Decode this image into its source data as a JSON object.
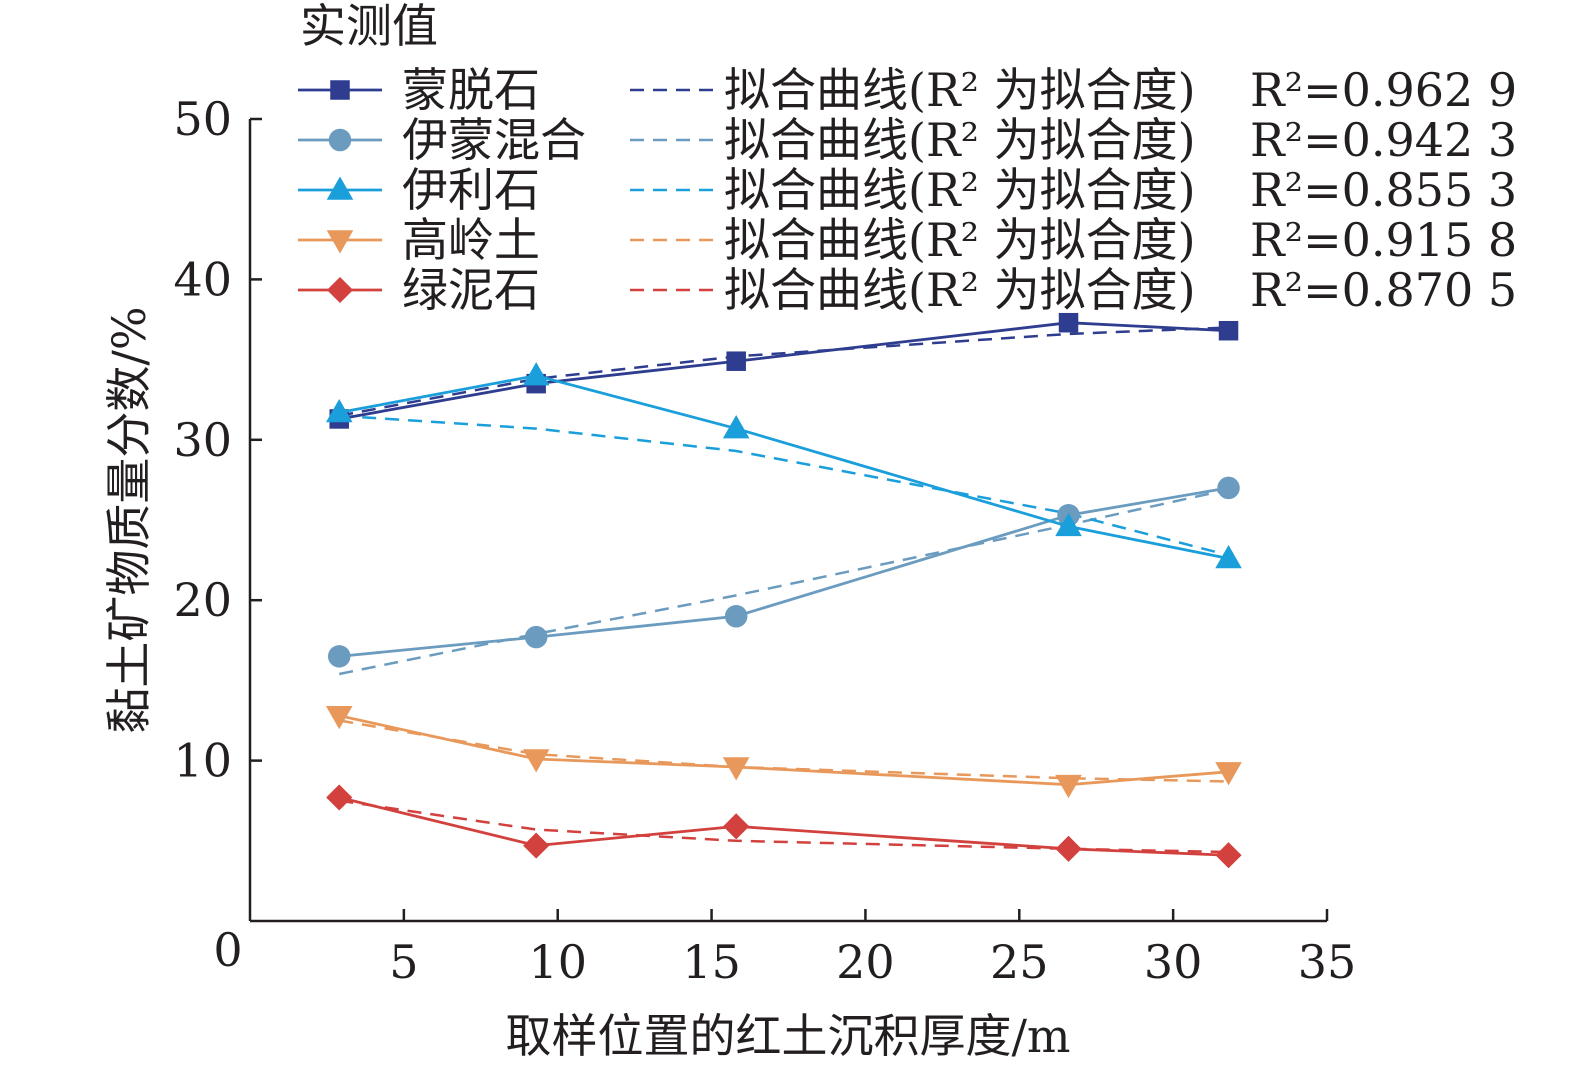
{
  "chart_data": {
    "type": "line",
    "title": "",
    "xlabel": "取样位置的红土沉积厚度/m",
    "ylabel": "黏土矿物质量分数/%",
    "xlim": [
      0,
      35
    ],
    "ylim": [
      0,
      50
    ],
    "xticks": [
      5,
      10,
      15,
      20,
      25,
      30,
      35
    ],
    "yticks": [
      10,
      20,
      30,
      40,
      50
    ],
    "origin_label": "0",
    "grid": false,
    "legend_position": "top",
    "legend_title": "实测值",
    "series": [
      {
        "name": "蒙脱石",
        "color": "#2e3d8f",
        "marker": "square",
        "x": [
          2.9,
          9.3,
          15.8,
          26.6,
          31.8
        ],
        "y": [
          31.3,
          33.5,
          34.9,
          37.3,
          36.8
        ],
        "fit_y": [
          31.5,
          33.8,
          35.2,
          36.6,
          37.0
        ],
        "fit_label": "拟合曲线(R² 为拟合度)",
        "r2_label": "R²=0.962 9"
      },
      {
        "name": "伊蒙混合",
        "color": "#6b9cbf",
        "marker": "circle",
        "x": [
          2.9,
          9.3,
          15.8,
          26.6,
          31.8
        ],
        "y": [
          16.5,
          17.7,
          19.0,
          25.3,
          27.0
        ],
        "fit_y": [
          15.4,
          17.9,
          20.3,
          24.7,
          26.9
        ],
        "fit_label": "拟合曲线(R² 为拟合度)",
        "r2_label": "R²=0.942 3"
      },
      {
        "name": "伊利石",
        "color": "#1a9fdb",
        "marker": "triangle-up",
        "x": [
          2.9,
          9.3,
          15.8,
          26.6,
          31.8
        ],
        "y": [
          31.7,
          34.0,
          30.7,
          24.6,
          22.6
        ],
        "fit_y": [
          31.5,
          30.7,
          29.3,
          25.4,
          22.8
        ],
        "fit_label": "拟合曲线(R² 为拟合度)",
        "r2_label": "R²=0.855 3"
      },
      {
        "name": "高岭土",
        "color": "#e8985a",
        "marker": "triangle-down",
        "x": [
          2.9,
          9.3,
          15.8,
          26.6,
          31.8
        ],
        "y": [
          12.8,
          10.1,
          9.6,
          8.5,
          9.3
        ],
        "fit_y": [
          12.5,
          10.4,
          9.6,
          8.9,
          8.7
        ],
        "fit_label": "拟合曲线(R² 为拟合度)",
        "r2_label": "R²=0.915 8"
      },
      {
        "name": "绿泥石",
        "color": "#d2413d",
        "marker": "diamond",
        "x": [
          2.9,
          9.3,
          15.8,
          26.6,
          31.8
        ],
        "y": [
          7.7,
          4.7,
          5.9,
          4.5,
          4.1
        ],
        "fit_y": [
          7.5,
          5.7,
          5.0,
          4.5,
          4.3
        ],
        "fit_label": "拟合曲线(R² 为拟合度)",
        "r2_label": "R²=0.870 5"
      }
    ]
  }
}
